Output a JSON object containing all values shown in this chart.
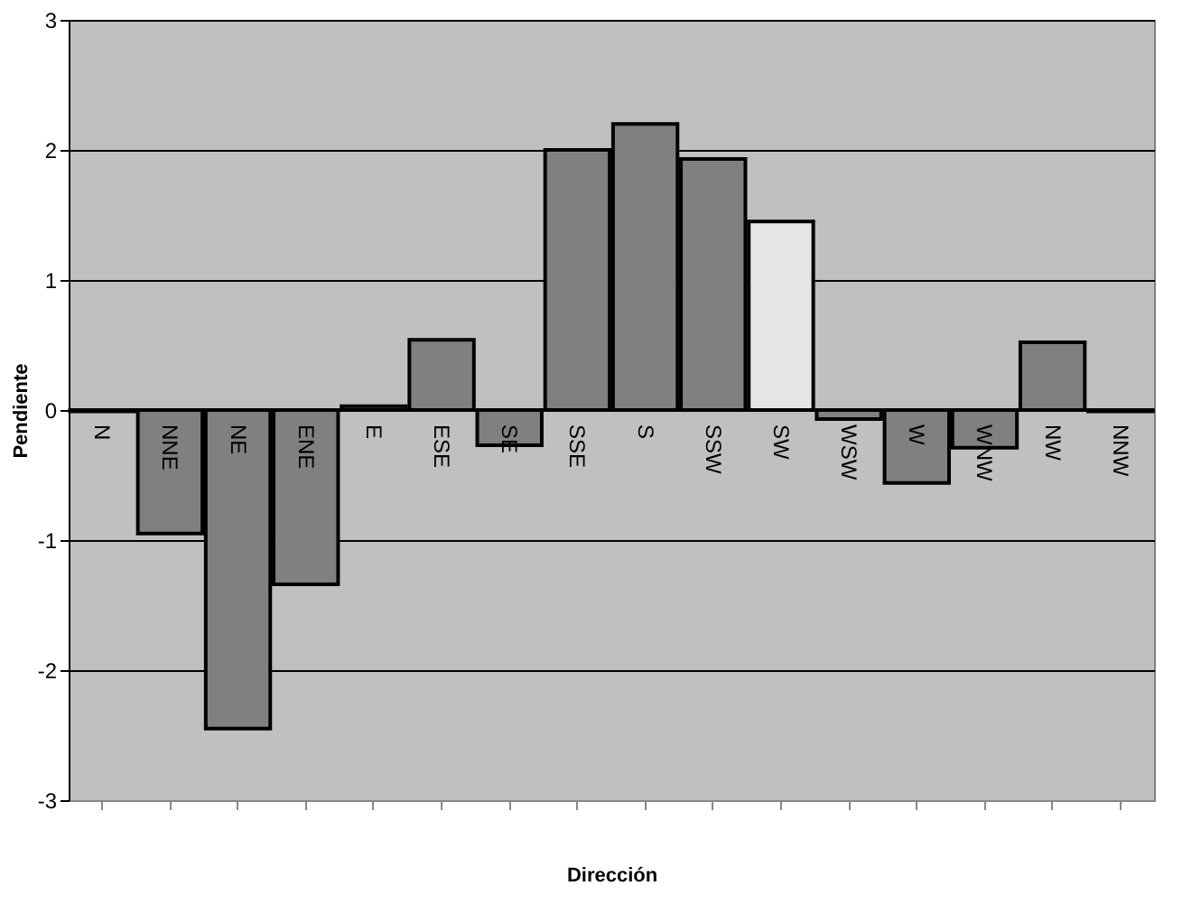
{
  "chart_data": {
    "type": "bar",
    "xlabel": "Dirección",
    "ylabel": "Pendiente",
    "categories": [
      "N",
      "NNE",
      "NE",
      "ENE",
      "E",
      "ESE",
      "SE",
      "SSE",
      "S",
      "SSW",
      "SW",
      "WSW",
      "W",
      "WNW",
      "NW",
      "NNW"
    ],
    "values": [
      -0.01,
      -0.95,
      -2.45,
      -1.34,
      0.03,
      0.54,
      -0.27,
      2.0,
      2.2,
      1.93,
      1.45,
      -0.07,
      -0.56,
      -0.29,
      0.52,
      -0.01
    ],
    "colors": [
      "#808080",
      "#808080",
      "#808080",
      "#808080",
      "#808080",
      "#808080",
      "#808080",
      "#808080",
      "#808080",
      "#808080",
      "#e5e5e5",
      "#808080",
      "#808080",
      "#808080",
      "#808080",
      "#808080"
    ],
    "ylim": [
      -3,
      3
    ],
    "yticks": [
      -3,
      -2,
      -1,
      0,
      1,
      2,
      3
    ],
    "grid": "y"
  }
}
